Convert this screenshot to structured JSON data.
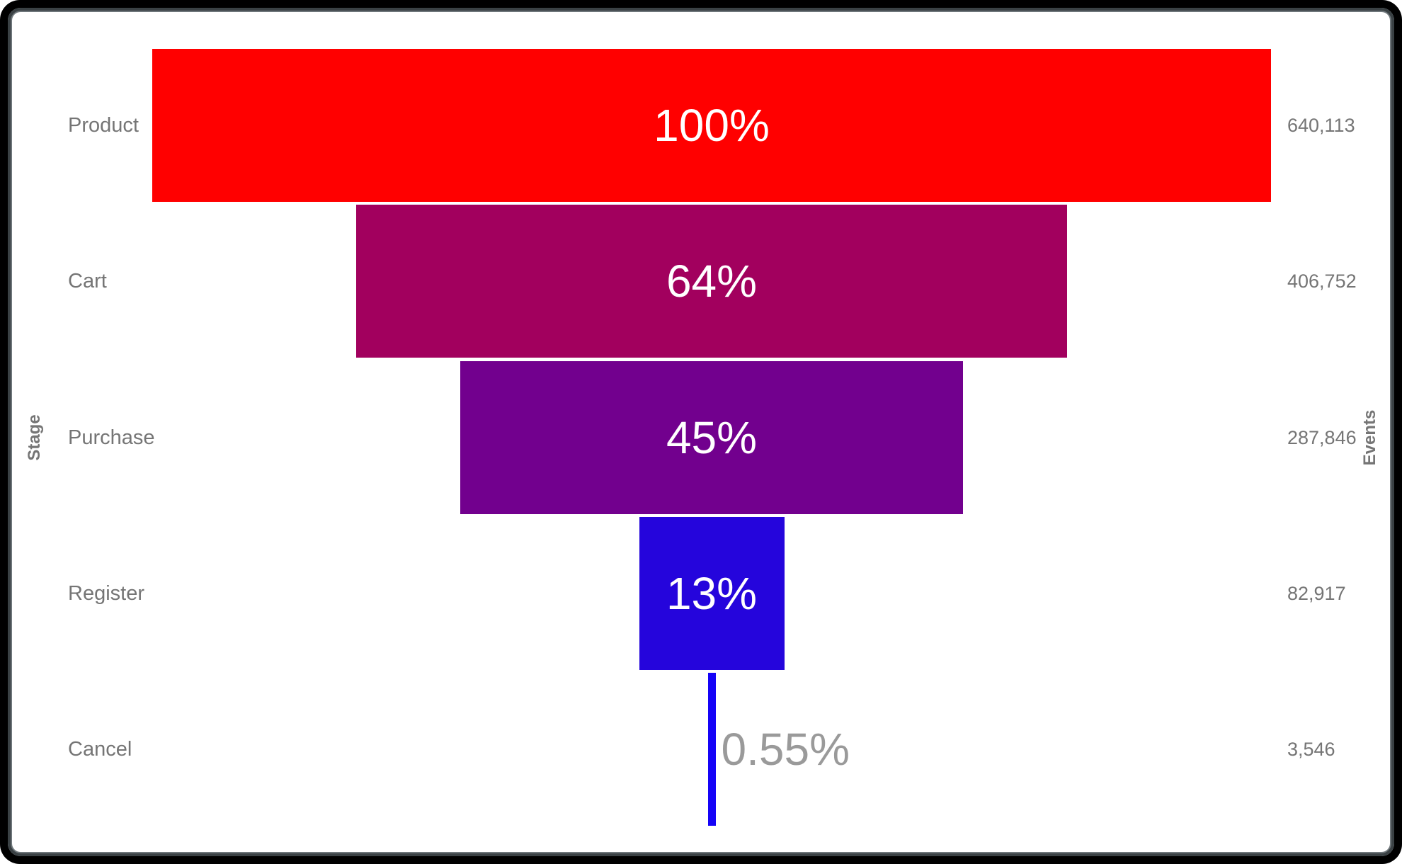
{
  "chart_data": {
    "type": "funnel",
    "left_axis_title": "Stage",
    "right_axis_title": "Events",
    "legend_position": "none",
    "grid": false,
    "stages": [
      {
        "label": "Product",
        "percent": "100%",
        "events": "640,113",
        "value": 640113,
        "color": "#ff0000"
      },
      {
        "label": "Cart",
        "percent": "64%",
        "events": "406,752",
        "value": 406752,
        "color": "#a2005e"
      },
      {
        "label": "Purchase",
        "percent": "45%",
        "events": "287,846",
        "value": 287846,
        "color": "#72008e"
      },
      {
        "label": "Register",
        "percent": "13%",
        "events": "82,917",
        "value": 82917,
        "color": "#2505dc"
      },
      {
        "label": "Cancel",
        "percent": "0.55%",
        "events": "3,546",
        "value": 3546,
        "color": "#1503f7"
      }
    ],
    "colors": {
      "inside_label": "#ffffff",
      "outside_label": "#9a9a9a",
      "axis_text": "#757575",
      "frame": "#000000"
    }
  }
}
